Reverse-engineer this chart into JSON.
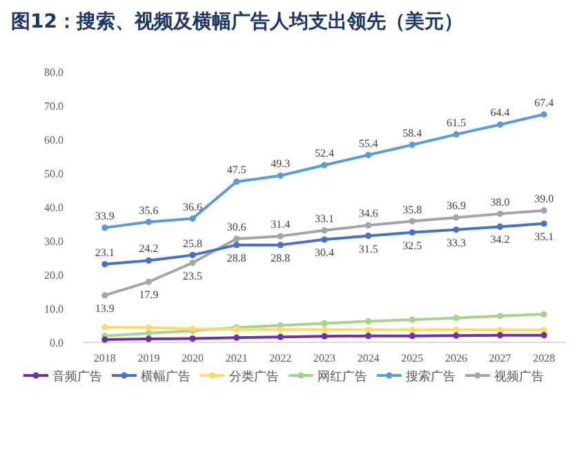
{
  "chart_data": {
    "type": "line",
    "title": "图12：搜索、视频及横幅广告人均支出领先（美元）",
    "categories": [
      "2018",
      "2019",
      "2020",
      "2021",
      "2022",
      "2023",
      "2024",
      "2025",
      "2026",
      "2027",
      "2028"
    ],
    "ylim": [
      0,
      80
    ],
    "yticks": [
      {
        "value": 0,
        "label": "0.0"
      },
      {
        "value": 10,
        "label": "10.0"
      },
      {
        "value": 20,
        "label": "20.0"
      },
      {
        "value": 30,
        "label": "30.0"
      },
      {
        "value": 40,
        "label": "40.0"
      },
      {
        "value": 50,
        "label": "50.0"
      },
      {
        "value": 60,
        "label": "60.0"
      },
      {
        "value": 70,
        "label": "70.0"
      },
      {
        "value": 80,
        "label": "80.0"
      }
    ],
    "grid": false,
    "legend": "bottom",
    "marker": "circle",
    "line_style": "solid",
    "series": [
      {
        "name": "音频广告",
        "color": "#7030a0",
        "values": [
          0.8,
          1.0,
          1.1,
          1.4,
          1.6,
          1.8,
          1.9,
          1.9,
          2.0,
          2.1,
          2.1
        ]
      },
      {
        "name": "横幅广告",
        "color": "#4472c4",
        "values": [
          23.1,
          24.2,
          25.8,
          28.8,
          28.8,
          30.4,
          31.5,
          32.5,
          33.3,
          34.2,
          35.1
        ],
        "value_labels": [
          "23.1",
          "24.2",
          "25.8",
          "28.8",
          "28.8",
          "30.4",
          "31.5",
          "32.5",
          "33.3",
          "34.2",
          "35.1"
        ]
      },
      {
        "name": "分类广告",
        "color": "#ffd966",
        "values": [
          4.5,
          4.4,
          4.0,
          3.9,
          3.8,
          3.8,
          3.7,
          3.7,
          3.7,
          3.6,
          3.6
        ]
      },
      {
        "name": "网红广告",
        "color": "#a9d18e",
        "values": [
          1.9,
          2.7,
          3.4,
          4.4,
          5.0,
          5.6,
          6.2,
          6.7,
          7.2,
          7.8,
          8.3
        ]
      },
      {
        "name": "搜索广告",
        "color": "#5b9bd5",
        "values": [
          33.9,
          35.6,
          36.6,
          47.5,
          49.3,
          52.4,
          55.4,
          58.4,
          61.5,
          64.4,
          67.4
        ],
        "value_labels": [
          "33.9",
          "35.6",
          "36.6",
          "47.5",
          "49.3",
          "52.4",
          "55.4",
          "58.4",
          "61.5",
          "64.4",
          "67.4"
        ]
      },
      {
        "name": "视频广告",
        "color": "#a5a5a5",
        "values": [
          13.9,
          17.9,
          23.5,
          30.6,
          31.4,
          33.1,
          34.6,
          35.8,
          36.9,
          38.0,
          39.0
        ],
        "value_labels": [
          "13.9",
          "17.9",
          "23.5",
          "30.6",
          "31.4",
          "33.1",
          "34.6",
          "35.8",
          "36.9",
          "38.0",
          "39.0"
        ]
      }
    ]
  }
}
